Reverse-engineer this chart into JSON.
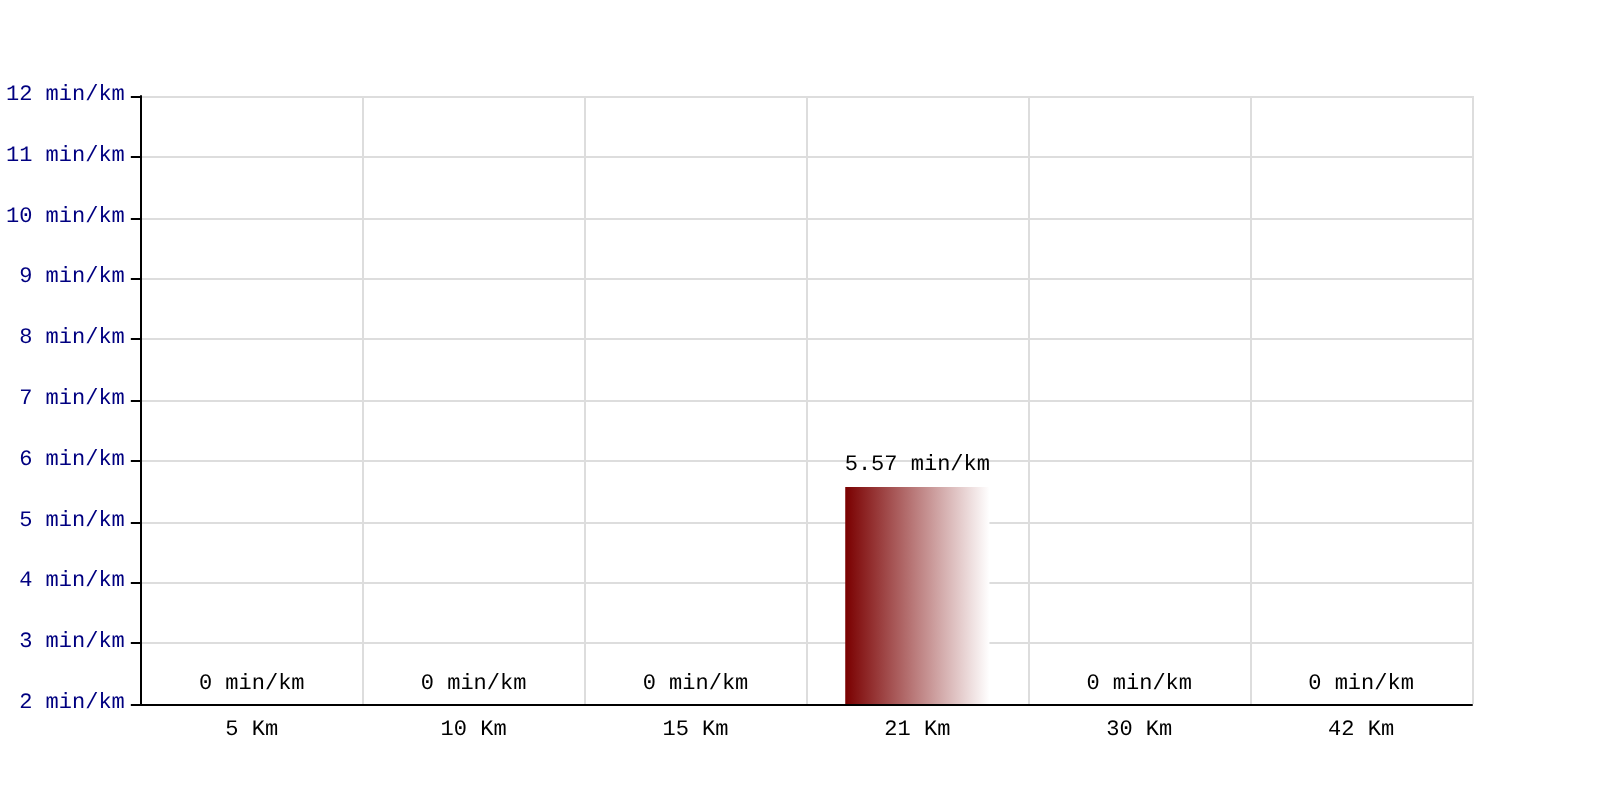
{
  "chart_data": {
    "type": "bar",
    "categories": [
      "5 Km",
      "10 Km",
      "15 Km",
      "21 Km",
      "30 Km",
      "42 Km"
    ],
    "values": [
      null,
      null,
      null,
      5.57,
      null,
      null
    ],
    "value_labels": [
      "0 min/km",
      "0 min/km",
      "0 min/km",
      "5.57 min/km",
      "0 min/km",
      "0 min/km"
    ],
    "color": "#7a0000",
    "ylim": [
      2,
      12
    ],
    "yticks": [
      {
        "value": 2,
        "label": "2 min/km"
      },
      {
        "value": 3,
        "label": "3 min/km"
      },
      {
        "value": 4,
        "label": "4 min/km"
      },
      {
        "value": 5,
        "label": "5 min/km"
      },
      {
        "value": 6,
        "label": "6 min/km"
      },
      {
        "value": 7,
        "label": "7 min/km"
      },
      {
        "value": 8,
        "label": "8 min/km"
      },
      {
        "value": 9,
        "label": "9 min/km"
      },
      {
        "value": 10,
        "label": "10 min/km"
      },
      {
        "value": 11,
        "label": "11 min/km"
      },
      {
        "value": 12,
        "label": "12 min/km"
      }
    ],
    "grid": true
  }
}
